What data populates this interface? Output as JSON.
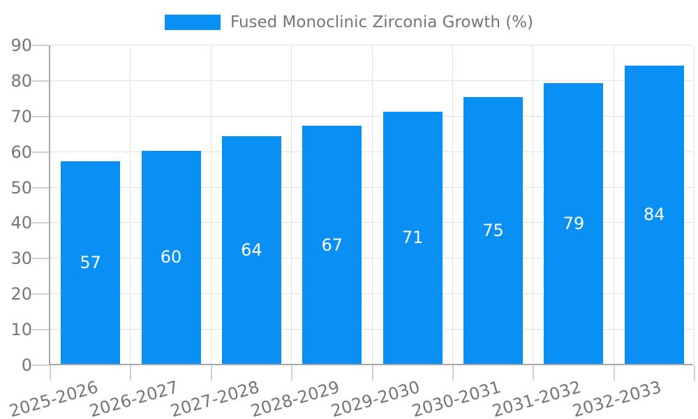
{
  "chart_data": {
    "type": "bar",
    "title": "",
    "legend": {
      "label": "Fused Monoclinic Zirconia Growth (%)",
      "position": "top-center"
    },
    "categories": [
      "2025-2026",
      "2026-2027",
      "2027-2028",
      "2028-2029",
      "2029-2030",
      "2030-2031",
      "2031-2032",
      "2032-2033"
    ],
    "values": [
      57,
      60,
      64,
      67,
      71,
      75,
      79,
      84
    ],
    "value_labels_shown": true,
    "xlabel": "",
    "ylabel": "",
    "ylim": [
      0,
      90
    ],
    "ytick_step": 10,
    "yticks": [
      0,
      10,
      20,
      30,
      40,
      50,
      60,
      70,
      80,
      90
    ],
    "grid": true,
    "xlabel_rotation_deg": -16
  },
  "colors": {
    "bar": "#0a8ff5",
    "grid": "#e2e2e2",
    "axis": "#a6a6a6",
    "tick": "#cfcfcf",
    "text": "#757575",
    "value_text": "#ffffff",
    "background": "#ffffff"
  }
}
